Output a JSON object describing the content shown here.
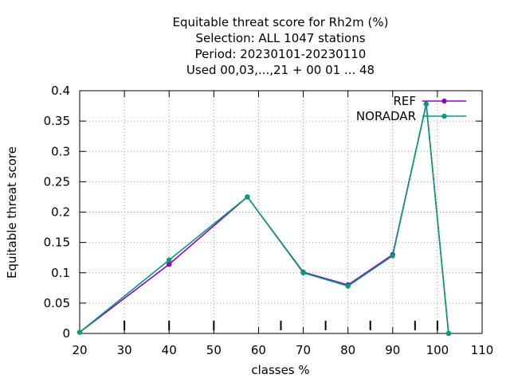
{
  "chart_data": {
    "type": "line",
    "title_lines": [
      "Equitable threat score  for Rh2m (%)",
      "Selection: ALL   1047 stations",
      "Period: 20230101-20230110",
      "Used  00,03,...,21  + 00 01 ... 48"
    ],
    "xlabel": "classes %",
    "ylabel": "Equitable threat score",
    "xlim": [
      20,
      110
    ],
    "ylim": [
      0,
      0.4
    ],
    "x_ticks": [
      20,
      30,
      40,
      50,
      60,
      70,
      80,
      90,
      100,
      110
    ],
    "y_ticks": [
      0,
      0.05,
      0.1,
      0.15,
      0.2,
      0.25,
      0.3,
      0.35,
      0.4
    ],
    "y_tick_labels": [
      "0",
      "0.05",
      "0.1",
      "0.15",
      "0.2",
      "0.25",
      "0.3",
      "0.35",
      "0.4"
    ],
    "class_markers": [
      30,
      40,
      50,
      65,
      75,
      85,
      95,
      100
    ],
    "grid": true,
    "legend_position": "top-right",
    "series": [
      {
        "name": "REF",
        "color": "#9400d3",
        "x": [
          20,
          40,
          57.5,
          70,
          80,
          90,
          97.5,
          102.5
        ],
        "y": [
          0.002,
          0.114,
          0.225,
          0.101,
          0.08,
          0.13,
          0.378,
          0.0
        ]
      },
      {
        "name": "NORADAR",
        "color": "#009e73",
        "x": [
          20,
          40,
          57.5,
          70,
          80,
          90,
          97.5,
          102.5
        ],
        "y": [
          0.002,
          0.121,
          0.225,
          0.1,
          0.078,
          0.128,
          0.378,
          0.0
        ]
      }
    ]
  }
}
